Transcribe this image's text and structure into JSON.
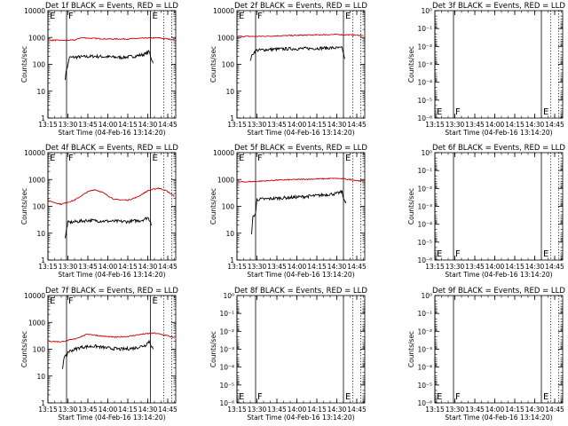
{
  "chart_data": [
    {
      "type": "line",
      "title": "Det 1f BLACK = Events, RED = LLD",
      "xlabel": "Start Time (04-Feb-16 13:14:20)",
      "ylabel": "Counts/sec",
      "yscale": "log",
      "ylim": [
        1,
        10000
      ],
      "ytick_labels": [
        "1",
        "10",
        "100",
        "1000",
        "10000"
      ],
      "xlim_minutes": [
        13.25,
        14.85
      ],
      "xtick_labels": [
        "13:15",
        "13:30",
        "13:45",
        "14:00",
        "14:15",
        "14:30",
        "14:45"
      ],
      "markers": [
        {
          "label": "E",
          "time": "13:15",
          "style": "solid"
        },
        {
          "label": "F",
          "time": "13:29",
          "style": "solid"
        },
        {
          "label": "E",
          "time": "14:32",
          "style": "solid"
        },
        {
          "label": "",
          "time": "14:42",
          "style": "dotted"
        },
        {
          "label": "",
          "time": "14:48",
          "style": "dotted"
        }
      ],
      "series": [
        {
          "color": "#000000",
          "points": [
            [
              "13:28",
              30
            ],
            [
              "13:29",
              70
            ],
            [
              "13:30",
              90
            ],
            [
              "13:31",
              180
            ],
            [
              "13:40",
              190
            ],
            [
              "13:50",
              200
            ],
            [
              "14:00",
              190
            ],
            [
              "14:10",
              180
            ],
            [
              "14:20",
              200
            ],
            [
              "14:28",
              240
            ],
            [
              "14:31",
              300
            ],
            [
              "14:33",
              150
            ],
            [
              "14:34",
              110
            ]
          ]
        },
        {
          "color": "#cc0000",
          "points": [
            [
              "13:15",
              800
            ],
            [
              "13:25",
              780
            ],
            [
              "13:35",
              800
            ],
            [
              "13:40",
              1000
            ],
            [
              "13:45",
              950
            ],
            [
              "14:00",
              880
            ],
            [
              "14:15",
              880
            ],
            [
              "14:30",
              960
            ],
            [
              "14:38",
              970
            ],
            [
              "14:45",
              880
            ],
            [
              "14:50",
              820
            ]
          ]
        }
      ]
    },
    {
      "type": "line",
      "title": "Det 2f BLACK = Events, RED = LLD",
      "xlabel": "Start Time (04-Feb-16 13:14:20)",
      "ylabel": "Counts/sec",
      "yscale": "log",
      "ylim": [
        1,
        10000
      ],
      "ytick_labels": [
        "1",
        "10",
        "100",
        "1000",
        "10000"
      ],
      "xlim_minutes": [
        13.25,
        14.85
      ],
      "xtick_labels": [
        "13:15",
        "13:30",
        "13:45",
        "14:00",
        "14:15",
        "14:30",
        "14:45"
      ],
      "markers": [
        {
          "label": "E",
          "time": "13:15",
          "style": "solid"
        },
        {
          "label": "F",
          "time": "13:29",
          "style": "solid"
        },
        {
          "label": "E",
          "time": "14:35",
          "style": "solid"
        },
        {
          "label": "",
          "time": "14:42",
          "style": "dotted"
        },
        {
          "label": "",
          "time": "14:48",
          "style": "dotted"
        }
      ],
      "series": [
        {
          "color": "#000000",
          "points": [
            [
              "13:25",
              150
            ],
            [
              "13:27",
              250
            ],
            [
              "13:29",
              330
            ],
            [
              "13:40",
              360
            ],
            [
              "13:55",
              380
            ],
            [
              "14:10",
              390
            ],
            [
              "14:25",
              410
            ],
            [
              "14:34",
              400
            ],
            [
              "14:36",
              160
            ]
          ]
        },
        {
          "color": "#cc0000",
          "points": [
            [
              "13:15",
              1100
            ],
            [
              "13:30",
              1100
            ],
            [
              "13:45",
              1150
            ],
            [
              "14:00",
              1200
            ],
            [
              "14:15",
              1250
            ],
            [
              "14:30",
              1300
            ],
            [
              "14:40",
              1250
            ],
            [
              "14:50",
              1200
            ]
          ]
        }
      ]
    },
    {
      "type": "line",
      "title": "Det 3f BLACK = Events, RED = LLD",
      "xlabel": "Start Time (04-Feb-16 13:14:20)",
      "ylabel": "Counts/sec",
      "yscale": "log",
      "ylim": [
        1,
        1e-06
      ],
      "ytick_labels": [
        "10⁰",
        "10⁻¹",
        "10⁻²",
        "10⁻³",
        "10⁻⁴",
        "10⁻⁵",
        "10⁻⁶"
      ],
      "xlim_minutes": [
        13.25,
        14.85
      ],
      "xtick_labels": [
        "13:15",
        "13:30",
        "13:45",
        "14:00",
        "14:15",
        "14:30",
        "14:45"
      ],
      "markers": [
        {
          "label": "E",
          "time": "13:15",
          "style": "solid"
        },
        {
          "label": "F",
          "time": "13:29",
          "style": "solid"
        },
        {
          "label": "E",
          "time": "14:35",
          "style": "solid"
        },
        {
          "label": "",
          "time": "14:42",
          "style": "dotted"
        },
        {
          "label": "",
          "time": "14:48",
          "style": "dotted"
        }
      ],
      "series": []
    },
    {
      "type": "line",
      "title": "Det 4f BLACK = Events, RED = LLD",
      "xlabel": "Start Time (04-Feb-16 13:14:20)",
      "ylabel": "Counts/sec",
      "yscale": "log",
      "ylim": [
        1,
        10000
      ],
      "ytick_labels": [
        "1",
        "10",
        "100",
        "1000",
        "10000"
      ],
      "xlim_minutes": [
        13.25,
        14.85
      ],
      "xtick_labels": [
        "13:15",
        "13:30",
        "13:45",
        "14:00",
        "14:15",
        "14:30",
        "14:45"
      ],
      "markers": [
        {
          "label": "E",
          "time": "13:15",
          "style": "solid"
        },
        {
          "label": "F",
          "time": "13:29",
          "style": "solid"
        },
        {
          "label": "E",
          "time": "14:32",
          "style": "solid"
        },
        {
          "label": "",
          "time": "14:42",
          "style": "dotted"
        },
        {
          "label": "",
          "time": "14:48",
          "style": "dotted"
        }
      ],
      "series": [
        {
          "color": "#000000",
          "points": [
            [
              "13:28",
              6
            ],
            [
              "13:29",
              15
            ],
            [
              "13:30",
              25
            ],
            [
              "13:45",
              30
            ],
            [
              "14:00",
              28
            ],
            [
              "14:15",
              27
            ],
            [
              "14:25",
              30
            ],
            [
              "14:30",
              38
            ],
            [
              "14:32",
              28
            ],
            [
              "14:33",
              20
            ]
          ]
        },
        {
          "color": "#cc0000",
          "points": [
            [
              "13:15",
              160
            ],
            [
              "13:25",
              120
            ],
            [
              "13:35",
              170
            ],
            [
              "13:45",
              350
            ],
            [
              "13:50",
              420
            ],
            [
              "13:55",
              350
            ],
            [
              "14:05",
              180
            ],
            [
              "14:15",
              170
            ],
            [
              "14:22",
              220
            ],
            [
              "14:30",
              380
            ],
            [
              "14:38",
              480
            ],
            [
              "14:44",
              380
            ],
            [
              "14:50",
              240
            ]
          ]
        }
      ]
    },
    {
      "type": "line",
      "title": "Det 5f BLACK = Events, RED = LLD",
      "xlabel": "Start Time (04-Feb-16 13:14:20)",
      "ylabel": "Counts/sec",
      "yscale": "log",
      "ylim": [
        1,
        10000
      ],
      "ytick_labels": [
        "1",
        "10",
        "100",
        "1000",
        "10000"
      ],
      "xlim_minutes": [
        13.25,
        14.85
      ],
      "xtick_labels": [
        "13:15",
        "13:30",
        "13:45",
        "14:00",
        "14:15",
        "14:30",
        "14:45"
      ],
      "markers": [
        {
          "label": "E",
          "time": "13:15",
          "style": "solid"
        },
        {
          "label": "F",
          "time": "13:29",
          "style": "solid"
        },
        {
          "label": "E",
          "time": "14:35",
          "style": "solid"
        },
        {
          "label": "",
          "time": "14:42",
          "style": "dotted"
        },
        {
          "label": "",
          "time": "14:48",
          "style": "dotted"
        }
      ],
      "series": [
        {
          "color": "#000000",
          "points": [
            [
              "13:26",
              10
            ],
            [
              "13:27",
              40
            ],
            [
              "13:29",
              55
            ],
            [
              "13:30",
              180
            ],
            [
              "13:45",
              200
            ],
            [
              "14:00",
              220
            ],
            [
              "14:15",
              250
            ],
            [
              "14:30",
              300
            ],
            [
              "14:34",
              350
            ],
            [
              "14:35",
              180
            ],
            [
              "14:37",
              150
            ]
          ]
        },
        {
          "color": "#cc0000",
          "points": [
            [
              "13:15",
              800
            ],
            [
              "13:30",
              850
            ],
            [
              "13:45",
              950
            ],
            [
              "14:00",
              1000
            ],
            [
              "14:15",
              1050
            ],
            [
              "14:30",
              1100
            ],
            [
              "14:40",
              1000
            ],
            [
              "14:50",
              850
            ]
          ]
        }
      ]
    },
    {
      "type": "line",
      "title": "Det 6f BLACK = Events, RED = LLD",
      "xlabel": "Start Time (04-Feb-16 13:14:20)",
      "ylabel": "Counts/sec",
      "yscale": "log",
      "ylim": [
        1,
        1e-06
      ],
      "ytick_labels": [
        "10⁰",
        "10⁻¹",
        "10⁻²",
        "10⁻³",
        "10⁻⁴",
        "10⁻⁵",
        "10⁻⁶"
      ],
      "xlim_minutes": [
        13.25,
        14.85
      ],
      "xtick_labels": [
        "13:15",
        "13:30",
        "13:45",
        "14:00",
        "14:15",
        "14:30",
        "14:45"
      ],
      "markers": [
        {
          "label": "E",
          "time": "13:15",
          "style": "solid"
        },
        {
          "label": "F",
          "time": "13:29",
          "style": "solid"
        },
        {
          "label": "E",
          "time": "14:35",
          "style": "solid"
        },
        {
          "label": "",
          "time": "14:42",
          "style": "dotted"
        },
        {
          "label": "",
          "time": "14:48",
          "style": "dotted"
        }
      ],
      "series": []
    },
    {
      "type": "line",
      "title": "Det 7f BLACK = Events, RED = LLD",
      "xlabel": "Start Time (04-Feb-16 13:14:20)",
      "ylabel": "Counts/sec",
      "yscale": "log",
      "ylim": [
        1,
        10000
      ],
      "ytick_labels": [
        "1",
        "10",
        "100",
        "1000",
        "10000"
      ],
      "xlim_minutes": [
        13.25,
        14.85
      ],
      "xtick_labels": [
        "13:15",
        "13:30",
        "13:45",
        "14:00",
        "14:15",
        "14:30",
        "14:45"
      ],
      "markers": [
        {
          "label": "E",
          "time": "13:15",
          "style": "solid"
        },
        {
          "label": "F",
          "time": "13:29",
          "style": "solid"
        },
        {
          "label": "E",
          "time": "14:32",
          "style": "solid"
        },
        {
          "label": "",
          "time": "14:42",
          "style": "dotted"
        },
        {
          "label": "",
          "time": "14:48",
          "style": "dotted"
        }
      ],
      "series": [
        {
          "color": "#000000",
          "points": [
            [
              "13:26",
              20
            ],
            [
              "13:27",
              50
            ],
            [
              "13:29",
              55
            ],
            [
              "13:30",
              80
            ],
            [
              "13:40",
              120
            ],
            [
              "13:50",
              130
            ],
            [
              "14:00",
              110
            ],
            [
              "14:10",
              100
            ],
            [
              "14:20",
              110
            ],
            [
              "14:28",
              140
            ],
            [
              "14:31",
              200
            ],
            [
              "14:33",
              130
            ],
            [
              "14:34",
              100
            ]
          ]
        },
        {
          "color": "#cc0000",
          "points": [
            [
              "13:15",
              200
            ],
            [
              "13:25",
              190
            ],
            [
              "13:35",
              240
            ],
            [
              "13:45",
              370
            ],
            [
              "13:55",
              310
            ],
            [
              "14:05",
              280
            ],
            [
              "14:15",
              300
            ],
            [
              "14:25",
              360
            ],
            [
              "14:35",
              400
            ],
            [
              "14:45",
              320
            ],
            [
              "14:50",
              260
            ]
          ]
        }
      ]
    },
    {
      "type": "line",
      "title": "Det 8f BLACK = Events, RED = LLD",
      "xlabel": "Start Time (04-Feb-16 13:14:20)",
      "ylabel": "Counts/sec",
      "yscale": "log",
      "ylim": [
        1,
        1e-06
      ],
      "ytick_labels": [
        "10⁰",
        "10⁻¹",
        "10⁻²",
        "10⁻³",
        "10⁻⁴",
        "10⁻⁵",
        "10⁻⁶"
      ],
      "xlim_minutes": [
        13.25,
        14.85
      ],
      "xtick_labels": [
        "13:15",
        "13:30",
        "13:45",
        "14:00",
        "14:15",
        "14:30",
        "14:45"
      ],
      "markers": [
        {
          "label": "E",
          "time": "13:15",
          "style": "solid"
        },
        {
          "label": "F",
          "time": "13:29",
          "style": "solid"
        },
        {
          "label": "E",
          "time": "14:35",
          "style": "solid"
        },
        {
          "label": "",
          "time": "14:42",
          "style": "dotted"
        },
        {
          "label": "",
          "time": "14:48",
          "style": "dotted"
        }
      ],
      "series": []
    },
    {
      "type": "line",
      "title": "Det 9f BLACK = Events, RED = LLD",
      "xlabel": "Start Time (04-Feb-16 13:14:20)",
      "ylabel": "Counts/sec",
      "yscale": "log",
      "ylim": [
        1,
        1e-06
      ],
      "ytick_labels": [
        "10⁰",
        "10⁻¹",
        "10⁻²",
        "10⁻³",
        "10⁻⁴",
        "10⁻⁵",
        "10⁻⁶"
      ],
      "xlim_minutes": [
        13.25,
        14.85
      ],
      "xtick_labels": [
        "13:15",
        "13:30",
        "13:45",
        "14:00",
        "14:15",
        "14:30",
        "14:45"
      ],
      "markers": [
        {
          "label": "E",
          "time": "13:15",
          "style": "solid"
        },
        {
          "label": "F",
          "time": "13:29",
          "style": "solid"
        },
        {
          "label": "E",
          "time": "14:35",
          "style": "solid"
        },
        {
          "label": "",
          "time": "14:42",
          "style": "dotted"
        },
        {
          "label": "",
          "time": "14:48",
          "style": "dotted"
        }
      ],
      "series": []
    }
  ]
}
